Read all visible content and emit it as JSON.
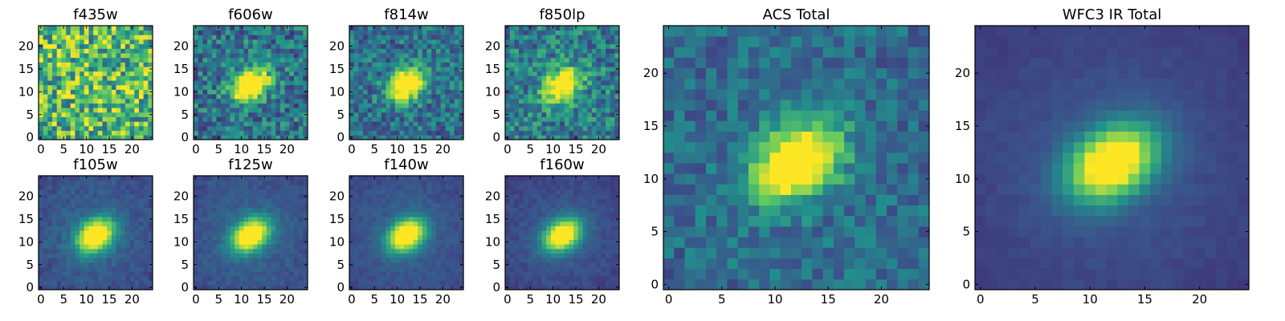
{
  "chart_data": [
    {
      "type": "heatmap",
      "title": "f435w",
      "xticks": [
        0,
        5,
        10,
        15,
        20
      ],
      "yticks": [
        0,
        5,
        10,
        15,
        20
      ],
      "xlim": [
        -0.5,
        24.5
      ],
      "ylim": [
        -0.5,
        24.5
      ],
      "grid": false,
      "colormap": "viridis",
      "cmap_colors": [
        "#440154",
        "#3b528b",
        "#21918c",
        "#5ec962",
        "#fde725"
      ],
      "source_peak": 0.0,
      "noise": 0.35,
      "background": 0.72,
      "seed": 11
    },
    {
      "type": "heatmap",
      "title": "f606w",
      "xticks": [
        0,
        5,
        10,
        15,
        20
      ],
      "yticks": [
        0,
        5,
        10,
        15,
        20
      ],
      "xlim": [
        -0.5,
        24.5
      ],
      "ylim": [
        -0.5,
        24.5
      ],
      "grid": false,
      "colormap": "viridis",
      "cmap_colors": [
        "#440154",
        "#3b528b",
        "#21918c",
        "#5ec962",
        "#fde725"
      ],
      "source_peak": 0.95,
      "noise": 0.22,
      "background": 0.42,
      "seed": 22
    },
    {
      "type": "heatmap",
      "title": "f814w",
      "xticks": [
        0,
        5,
        10,
        15,
        20
      ],
      "yticks": [
        0,
        5,
        10,
        15,
        20
      ],
      "xlim": [
        -0.5,
        24.5
      ],
      "ylim": [
        -0.5,
        24.5
      ],
      "grid": false,
      "colormap": "viridis",
      "cmap_colors": [
        "#440154",
        "#3b528b",
        "#21918c",
        "#5ec962",
        "#fde725"
      ],
      "source_peak": 0.95,
      "noise": 0.2,
      "background": 0.4,
      "seed": 33
    },
    {
      "type": "heatmap",
      "title": "f850lp",
      "xticks": [
        0,
        5,
        10,
        15,
        20
      ],
      "yticks": [
        0,
        5,
        10,
        15,
        20
      ],
      "xlim": [
        -0.5,
        24.5
      ],
      "ylim": [
        -0.5,
        24.5
      ],
      "grid": false,
      "colormap": "viridis",
      "cmap_colors": [
        "#440154",
        "#3b528b",
        "#21918c",
        "#5ec962",
        "#fde725"
      ],
      "source_peak": 0.85,
      "noise": 0.22,
      "background": 0.45,
      "seed": 44
    },
    {
      "type": "heatmap",
      "title": "f105w",
      "xticks": [
        0,
        5,
        10,
        15,
        20
      ],
      "yticks": [
        0,
        5,
        10,
        15,
        20
      ],
      "xlim": [
        -0.5,
        24.5
      ],
      "ylim": [
        -0.5,
        24.5
      ],
      "grid": false,
      "colormap": "viridis",
      "cmap_colors": [
        "#440154",
        "#3b528b",
        "#21918c",
        "#5ec962",
        "#fde725"
      ],
      "source_peak": 1.0,
      "noise": 0.06,
      "background": 0.35,
      "seed": 55
    },
    {
      "type": "heatmap",
      "title": "f125w",
      "xticks": [
        0,
        5,
        10,
        15,
        20
      ],
      "yticks": [
        0,
        5,
        10,
        15,
        20
      ],
      "xlim": [
        -0.5,
        24.5
      ],
      "ylim": [
        -0.5,
        24.5
      ],
      "grid": false,
      "colormap": "viridis",
      "cmap_colors": [
        "#440154",
        "#3b528b",
        "#21918c",
        "#5ec962",
        "#fde725"
      ],
      "source_peak": 1.0,
      "noise": 0.05,
      "background": 0.35,
      "seed": 66
    },
    {
      "type": "heatmap",
      "title": "f140w",
      "xticks": [
        0,
        5,
        10,
        15,
        20
      ],
      "yticks": [
        0,
        5,
        10,
        15,
        20
      ],
      "xlim": [
        -0.5,
        24.5
      ],
      "ylim": [
        -0.5,
        24.5
      ],
      "grid": false,
      "colormap": "viridis",
      "cmap_colors": [
        "#440154",
        "#3b528b",
        "#21918c",
        "#5ec962",
        "#fde725"
      ],
      "source_peak": 1.0,
      "noise": 0.04,
      "background": 0.33,
      "seed": 77
    },
    {
      "type": "heatmap",
      "title": "f160w",
      "xticks": [
        0,
        5,
        10,
        15,
        20
      ],
      "yticks": [
        0,
        5,
        10,
        15,
        20
      ],
      "xlim": [
        -0.5,
        24.5
      ],
      "ylim": [
        -0.5,
        24.5
      ],
      "grid": false,
      "colormap": "viridis",
      "cmap_colors": [
        "#440154",
        "#3b528b",
        "#21918c",
        "#5ec962",
        "#fde725"
      ],
      "source_peak": 1.0,
      "noise": 0.04,
      "background": 0.3,
      "seed": 88
    },
    {
      "type": "heatmap",
      "title": "ACS Total",
      "xticks": [
        0,
        5,
        10,
        15,
        20
      ],
      "yticks": [
        0,
        5,
        10,
        15,
        20
      ],
      "xlim": [
        -0.5,
        24.5
      ],
      "ylim": [
        -0.5,
        24.5
      ],
      "grid": false,
      "colormap": "viridis",
      "cmap_colors": [
        "#440154",
        "#3b528b",
        "#21918c",
        "#5ec962",
        "#fde725"
      ],
      "source_peak": 1.0,
      "noise": 0.14,
      "background": 0.38,
      "seed": 99
    },
    {
      "type": "heatmap",
      "title": "WFC3 IR Total",
      "xticks": [
        0,
        5,
        10,
        15,
        20
      ],
      "yticks": [
        0,
        5,
        10,
        15,
        20
      ],
      "xlim": [
        -0.5,
        24.5
      ],
      "ylim": [
        -0.5,
        24.5
      ],
      "grid": false,
      "colormap": "viridis",
      "cmap_colors": [
        "#440154",
        "#3b528b",
        "#21918c",
        "#5ec962",
        "#fde725"
      ],
      "source_peak": 1.0,
      "noise": 0.02,
      "background": 0.28,
      "seed": 111
    }
  ]
}
